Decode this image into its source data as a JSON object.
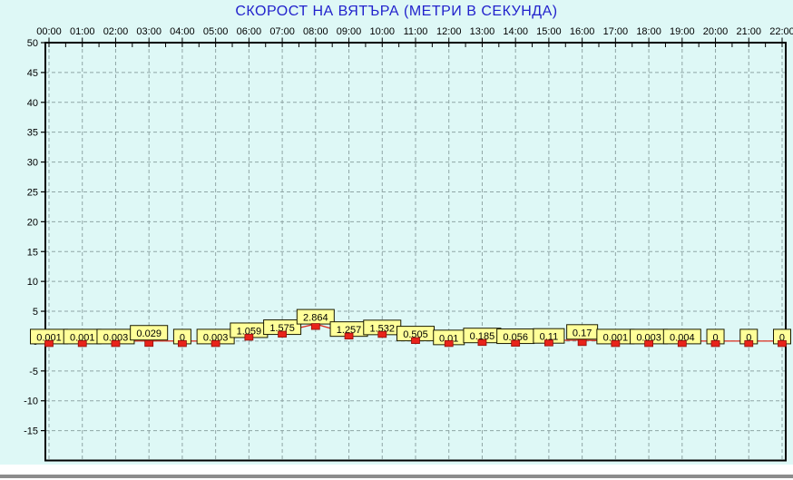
{
  "window": {
    "background_color": "#DEF8F6",
    "bottom_bar_color": "#8C8C8C"
  },
  "chart_data": {
    "type": "line",
    "title": "СКОРОСТ НА ВЯТЪРА (МЕТРИ В СЕКУНДА)",
    "title_color": "#2222CC",
    "x": [
      "00:00",
      "01:00",
      "02:00",
      "03:00",
      "04:00",
      "05:00",
      "06:00",
      "07:00",
      "08:00",
      "09:00",
      "10:00",
      "11:00",
      "12:00",
      "13:00",
      "14:00",
      "15:00",
      "16:00",
      "17:00",
      "18:00",
      "19:00",
      "20:00",
      "21:00",
      "22:00"
    ],
    "values": [
      0.001,
      0.001,
      0.003,
      0.029,
      0,
      0.003,
      1.059,
      1.575,
      2.864,
      1.257,
      1.532,
      0.505,
      0.01,
      0.185,
      0.056,
      0.11,
      0.17,
      0.001,
      0.003,
      0.004,
      0,
      0,
      0
    ],
    "point_labels": [
      "0.001",
      "0.001",
      "0.003",
      "0.029",
      "0",
      "0.003",
      "1.059",
      "1.575",
      "2.864",
      "1.257",
      "1.532",
      "0.505",
      "0.01",
      "0.185",
      "0.056",
      "0.11",
      "0.17",
      "0.001",
      "0.003",
      "0.004",
      "0",
      "0",
      "0"
    ],
    "ylim": [
      -20,
      50
    ],
    "ytick_step": 5,
    "ytick_labels": [
      "50",
      "45",
      "40",
      "35",
      "30",
      "25",
      "20",
      "15",
      "10",
      "5",
      "0",
      "-5",
      "-10",
      "-15"
    ],
    "grid": "dashed",
    "legend": "none",
    "grid_color": "#8FA5A5",
    "axis_color": "#000000",
    "series_color": "#DD2C1E",
    "marker_fill": "#E8231A",
    "marker_border": "#8F0F0A",
    "label_box_fill": "#FFFF99",
    "label_box_border": "#1A1A00"
  }
}
